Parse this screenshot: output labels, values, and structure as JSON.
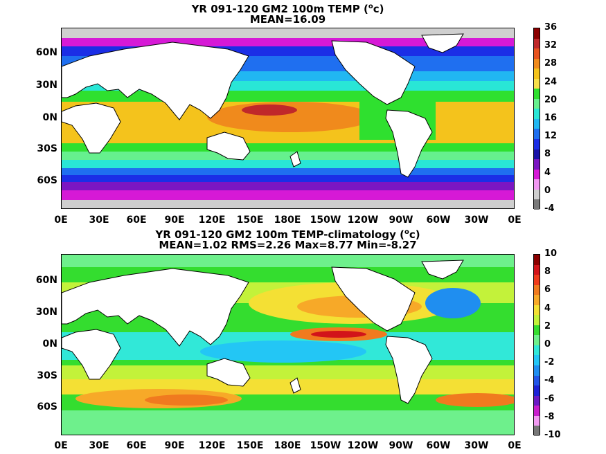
{
  "panel1": {
    "title_pre": "YR 091-120 GM2 100m TEMP (",
    "title_sup": "o",
    "title_post": "c)",
    "subtitle": "MEAN=16.09",
    "cbar_labels": [
      "36",
      "32",
      "28",
      "24",
      "20",
      "16",
      "12",
      "8",
      "4",
      "0",
      "-4"
    ],
    "cbar_colors": [
      "#8b0000",
      "#c0282a",
      "#e8531f",
      "#f08a1c",
      "#f4c31c",
      "#f7e04a",
      "#2fe02f",
      "#66f08e",
      "#29e6d6",
      "#21b7f2",
      "#1f6ff0",
      "#1b2ee6",
      "#1a12a8",
      "#7b16c2",
      "#d619d6",
      "#f298f2",
      "#cfcfcf",
      "#7a7a7a"
    ]
  },
  "panel2": {
    "title_pre": "YR 091-120 GM2 100m TEMP-climatology (",
    "title_sup": "o",
    "title_post": "c)",
    "subtitle": "MEAN=1.02   RMS=2.26   Max=8.77   Min=-8.27",
    "cbar_labels": [
      "10",
      "8",
      "6",
      "4",
      "2",
      "0",
      "-2",
      "-4",
      "-6",
      "-8",
      "-10"
    ],
    "cbar_colors": [
      "#8b0000",
      "#d2141a",
      "#ef3b1c",
      "#f07a1f",
      "#f7a928",
      "#f4e034",
      "#c3f23a",
      "#34dd2f",
      "#6ef08c",
      "#31e8d8",
      "#23c6f5",
      "#1f8ef0",
      "#2255e8",
      "#1d22d6",
      "#6b1ac4",
      "#c81ecc",
      "#f29af2",
      "#777777"
    ]
  },
  "lat_labels": [
    "60N",
    "30N",
    "0N",
    "30S",
    "60S"
  ],
  "lon_labels": [
    "0E",
    "30E",
    "60E",
    "90E",
    "120E",
    "150E",
    "180E",
    "150W",
    "120W",
    "90W",
    "60W",
    "30W",
    "0E"
  ]
}
